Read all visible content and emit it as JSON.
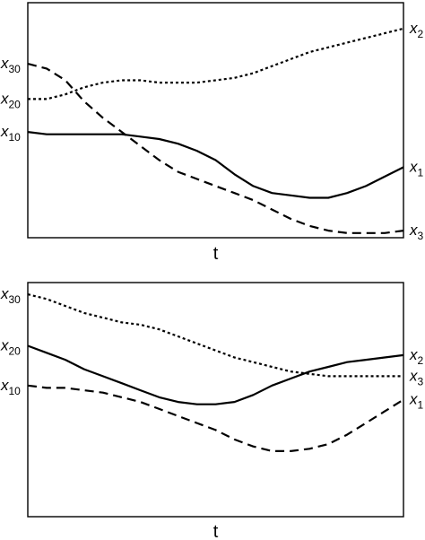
{
  "chart_data": [
    {
      "type": "line",
      "xlabel": "t",
      "ylim": [
        0,
        100
      ],
      "xlim": [
        0,
        100
      ],
      "grid": false,
      "legend": "none",
      "series": [
        {
          "name": "x3",
          "style": "dashed",
          "start_label": "x30",
          "end_label": "x3",
          "points": [
            [
              0,
              74
            ],
            [
              5,
              72
            ],
            [
              10,
              67
            ],
            [
              15,
              58
            ],
            [
              20,
              51
            ],
            [
              25,
              45
            ],
            [
              30,
              39
            ],
            [
              35,
              33
            ],
            [
              40,
              28
            ],
            [
              45,
              25
            ],
            [
              50,
              22
            ],
            [
              55,
              19
            ],
            [
              60,
              16
            ],
            [
              65,
              12
            ],
            [
              70,
              8
            ],
            [
              75,
              5
            ],
            [
              80,
              3
            ],
            [
              85,
              2
            ],
            [
              90,
              2
            ],
            [
              95,
              2
            ],
            [
              100,
              3
            ]
          ]
        },
        {
          "name": "x2",
          "style": "dotted",
          "start_label": "x20",
          "end_label": "x2",
          "points": [
            [
              0,
              59
            ],
            [
              5,
              59
            ],
            [
              10,
              61
            ],
            [
              15,
              64
            ],
            [
              20,
              66
            ],
            [
              25,
              67
            ],
            [
              30,
              67
            ],
            [
              35,
              66
            ],
            [
              40,
              66
            ],
            [
              45,
              66
            ],
            [
              50,
              67
            ],
            [
              55,
              68
            ],
            [
              60,
              70
            ],
            [
              65,
              73
            ],
            [
              70,
              76
            ],
            [
              75,
              79
            ],
            [
              80,
              81
            ],
            [
              85,
              83
            ],
            [
              90,
              85
            ],
            [
              95,
              87
            ],
            [
              100,
              89
            ]
          ]
        },
        {
          "name": "x1",
          "style": "solid",
          "start_label": "x10",
          "end_label": "x1",
          "points": [
            [
              0,
              45
            ],
            [
              5,
              44
            ],
            [
              10,
              44
            ],
            [
              15,
              44
            ],
            [
              20,
              44
            ],
            [
              25,
              44
            ],
            [
              30,
              43
            ],
            [
              35,
              42
            ],
            [
              40,
              40
            ],
            [
              45,
              37
            ],
            [
              50,
              33
            ],
            [
              55,
              27
            ],
            [
              60,
              22
            ],
            [
              65,
              19
            ],
            [
              70,
              18
            ],
            [
              75,
              17
            ],
            [
              80,
              17
            ],
            [
              85,
              19
            ],
            [
              90,
              22
            ],
            [
              95,
              26
            ],
            [
              100,
              30
            ]
          ]
        }
      ]
    },
    {
      "type": "line",
      "xlabel": "t",
      "ylim": [
        0,
        100
      ],
      "xlim": [
        0,
        100
      ],
      "grid": false,
      "legend": "none",
      "series": [
        {
          "name": "x3",
          "style": "dotted",
          "start_label": "x30",
          "end_label": "x3",
          "points": [
            [
              0,
              95
            ],
            [
              5,
              93
            ],
            [
              10,
              90
            ],
            [
              15,
              87
            ],
            [
              20,
              85
            ],
            [
              25,
              83
            ],
            [
              30,
              82
            ],
            [
              35,
              80
            ],
            [
              40,
              77
            ],
            [
              45,
              74
            ],
            [
              50,
              71
            ],
            [
              55,
              68
            ],
            [
              60,
              66
            ],
            [
              65,
              64
            ],
            [
              70,
              62
            ],
            [
              75,
              61
            ],
            [
              80,
              60
            ],
            [
              85,
              60
            ],
            [
              90,
              60
            ],
            [
              95,
              60
            ],
            [
              100,
              60
            ]
          ]
        },
        {
          "name": "x2",
          "style": "solid",
          "start_label": "x20",
          "end_label": "x2",
          "points": [
            [
              0,
              73
            ],
            [
              5,
              70
            ],
            [
              10,
              67
            ],
            [
              15,
              63
            ],
            [
              20,
              60
            ],
            [
              25,
              57
            ],
            [
              30,
              54
            ],
            [
              35,
              51
            ],
            [
              40,
              49
            ],
            [
              45,
              48
            ],
            [
              50,
              48
            ],
            [
              55,
              49
            ],
            [
              60,
              52
            ],
            [
              65,
              56
            ],
            [
              70,
              59
            ],
            [
              75,
              62
            ],
            [
              80,
              64
            ],
            [
              85,
              66
            ],
            [
              90,
              67
            ],
            [
              95,
              68
            ],
            [
              100,
              69
            ]
          ]
        },
        {
          "name": "x1",
          "style": "dashed",
          "start_label": "x10",
          "end_label": "x1",
          "points": [
            [
              0,
              56
            ],
            [
              5,
              55
            ],
            [
              10,
              55
            ],
            [
              15,
              54
            ],
            [
              20,
              53
            ],
            [
              25,
              51
            ],
            [
              30,
              49
            ],
            [
              35,
              46
            ],
            [
              40,
              43
            ],
            [
              45,
              40
            ],
            [
              50,
              37
            ],
            [
              55,
              33
            ],
            [
              60,
              30
            ],
            [
              65,
              28
            ],
            [
              70,
              28
            ],
            [
              75,
              29
            ],
            [
              80,
              31
            ],
            [
              85,
              35
            ],
            [
              90,
              40
            ],
            [
              95,
              45
            ],
            [
              100,
              50
            ]
          ]
        }
      ]
    }
  ]
}
